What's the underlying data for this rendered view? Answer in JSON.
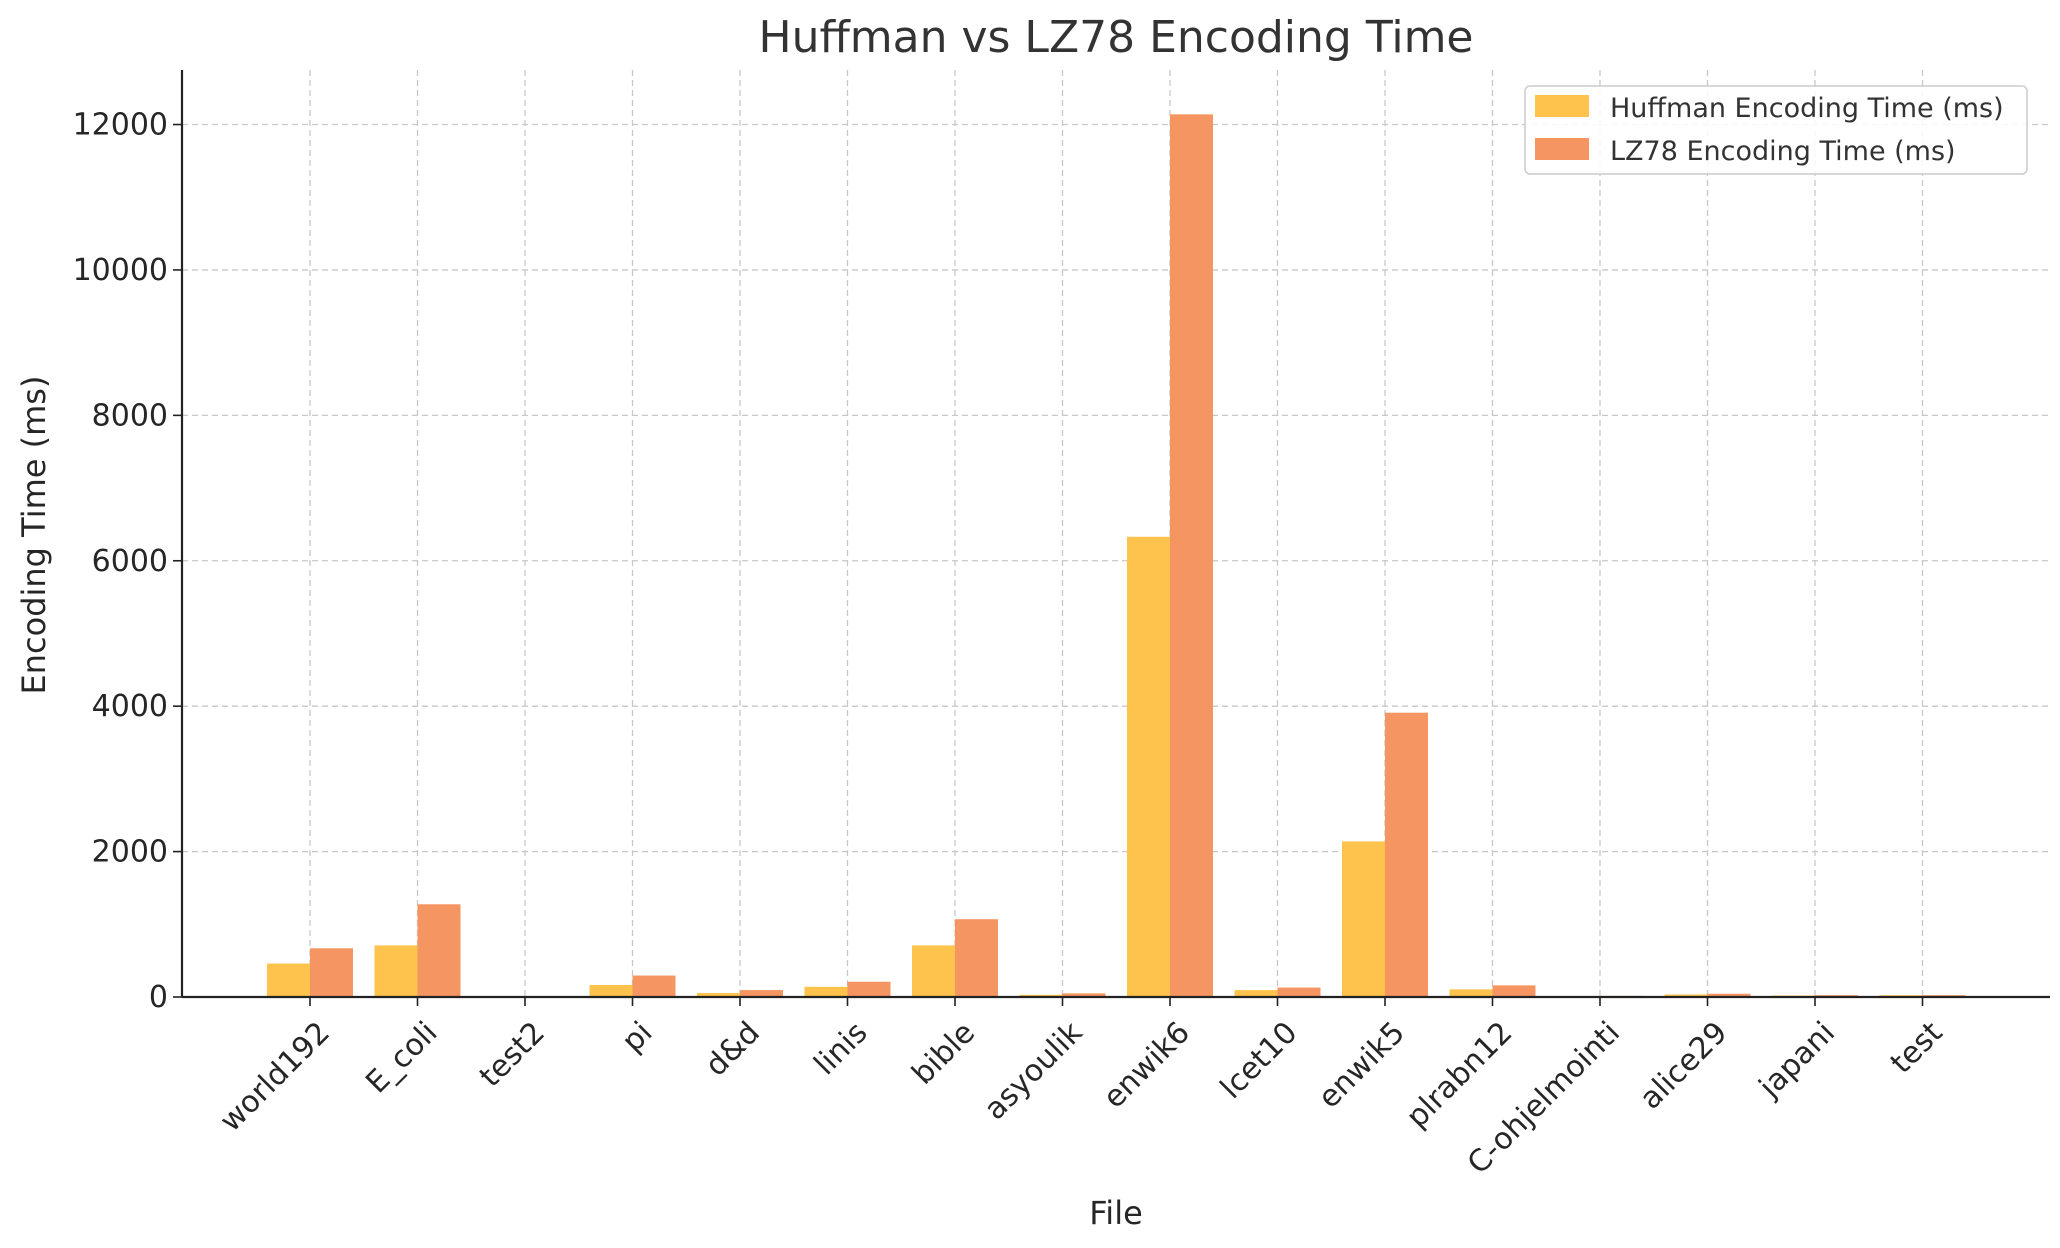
{
  "chart_data": {
    "type": "bar",
    "title": "Huffman vs LZ78 Encoding Time",
    "xlabel": "File",
    "ylabel": "Encoding Time (ms)",
    "categories": [
      "world192",
      "E_coli",
      "test2",
      "pi",
      "d&d",
      "linis",
      "bible",
      "asyoulik",
      "enwik6",
      "lcet10",
      "enwik5",
      "plrabn12",
      "C-ohjelmointi",
      "alice29",
      "japani",
      "test"
    ],
    "series": [
      {
        "name": "Huffman Encoding Time (ms)",
        "color": "#fdc34c",
        "values": [
          460,
          710,
          5,
          165,
          55,
          140,
          710,
          30,
          6330,
          95,
          2140,
          105,
          10,
          35,
          20,
          25
        ]
      },
      {
        "name": "LZ78 Encoding Time (ms)",
        "color": "#f59561",
        "values": [
          670,
          1275,
          5,
          295,
          95,
          210,
          1070,
          50,
          12140,
          130,
          3910,
          160,
          15,
          45,
          25,
          25
        ]
      }
    ],
    "ylim": [
      0,
      12750
    ],
    "yticks": [
      0,
      2000,
      4000,
      6000,
      8000,
      10000,
      12000
    ],
    "grid": true,
    "legend_position": "top-right"
  }
}
